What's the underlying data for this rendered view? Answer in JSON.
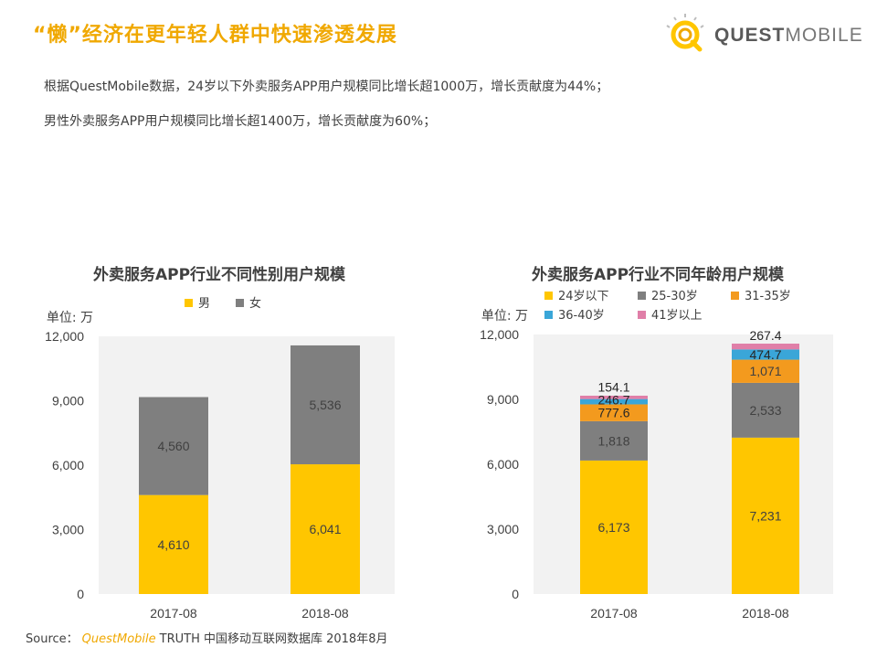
{
  "header": {
    "title": "“懒”经济在更年轻人群中快速渗透发展",
    "logo_bold": "QUEST",
    "logo_light": "MOBILE"
  },
  "description": [
    "根据QuestMobile数据，24岁以下外卖服务APP用户规模同比增长超1000万，增长贡献度为44%；",
    "男性外卖服务APP用户规模同比增长超1400万，增长贡献度为60%；"
  ],
  "source": {
    "label": "Source：",
    "brand": "QuestMobile",
    "text": "TRUTH 中国移动互联网数据库 2018年8月"
  },
  "colors": {
    "accent": "#f0a800",
    "yellow": "#ffc600",
    "gray": "#7f7f7f",
    "orange": "#f39a1e",
    "blue": "#3aa6d8",
    "pink": "#e07fa8"
  },
  "chart_data": [
    {
      "type": "bar",
      "stacked": true,
      "title": "外卖服务APP行业不同性别用户规模",
      "unit_label": "单位: 万",
      "categories": [
        "2017-08",
        "2018-08"
      ],
      "ylim": [
        0,
        12000
      ],
      "yticks": [
        "0",
        "3,000",
        "6,000",
        "9,000",
        "12,000"
      ],
      "legend_position": "top",
      "series": [
        {
          "name": "男",
          "color": "#ffc600",
          "values": [
            4610,
            6041
          ],
          "labels": [
            "4,610",
            "6,041"
          ],
          "label_position": "inside"
        },
        {
          "name": "女",
          "color": "#7f7f7f",
          "values": [
            4560,
            5536
          ],
          "labels": [
            "4,560",
            "5,536"
          ],
          "label_position": "inside"
        }
      ]
    },
    {
      "type": "bar",
      "stacked": true,
      "title": "外卖服务APP行业不同年龄用户规模",
      "unit_label": "单位: 万",
      "categories": [
        "2017-08",
        "2018-08"
      ],
      "ylim": [
        0,
        12000
      ],
      "yticks": [
        "0",
        "3,000",
        "6,000",
        "9,000",
        "12,000"
      ],
      "legend_position": "top",
      "series": [
        {
          "name": "24岁以下",
          "color": "#ffc600",
          "values": [
            6173,
            7231
          ],
          "labels": [
            "6,173",
            "7,231"
          ],
          "label_position": "inside"
        },
        {
          "name": "25-30岁",
          "color": "#7f7f7f",
          "values": [
            1818,
            2533
          ],
          "labels": [
            "1,818",
            "2,533"
          ],
          "label_position": "inside"
        },
        {
          "name": "31-35岁",
          "color": "#f39a1e",
          "values": [
            777.6,
            1071
          ],
          "labels": [
            "777.6",
            "1,071"
          ],
          "label_position": "inside"
        },
        {
          "name": "36-40岁",
          "color": "#3aa6d8",
          "values": [
            246.7,
            474.7
          ],
          "labels": [
            "246.7",
            "474.7"
          ],
          "label_position": "inside"
        },
        {
          "name": "41岁以上",
          "color": "#e07fa8",
          "values": [
            154.1,
            267.4
          ],
          "labels": [
            "154.1",
            "267.4"
          ],
          "label_position": "above"
        }
      ]
    }
  ]
}
